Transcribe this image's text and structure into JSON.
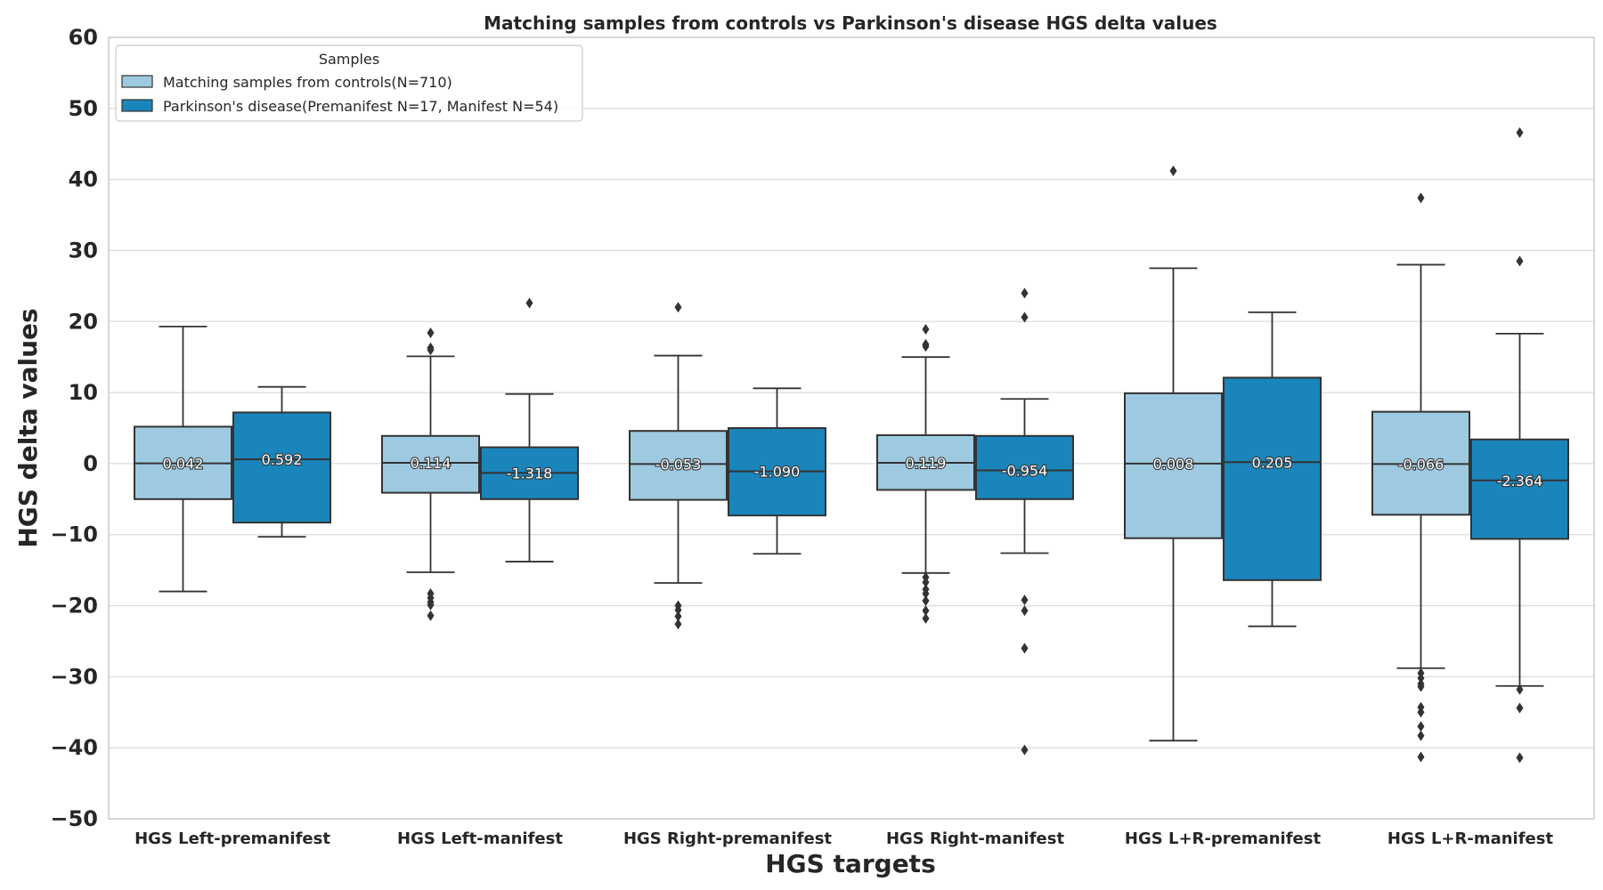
{
  "chart_data": {
    "type": "box",
    "title": "Matching samples from controls vs Parkinson's disease HGS delta values",
    "xlabel": "HGS targets",
    "ylabel": "HGS delta values",
    "ylim": [
      -50,
      60
    ],
    "yticks": [
      60,
      50,
      40,
      30,
      20,
      10,
      0,
      -10,
      -20,
      -30,
      -40,
      -50
    ],
    "ytick_labels": [
      "60",
      "50",
      "40",
      "30",
      "20",
      "10",
      "0",
      "−10",
      "−20",
      "−30",
      "−40",
      "−50"
    ],
    "grid": true,
    "categories": [
      "HGS Left-premanifest",
      "HGS Left-manifest",
      "HGS Right-premanifest",
      "HGS Right-manifest",
      "HGS L+R-premanifest",
      "HGS L+R-manifest"
    ],
    "legend": {
      "title": "Samples",
      "placement": "upper-left"
    },
    "series": [
      {
        "name": "Matching samples from controls(N=710)",
        "color": "#9ecae1",
        "boxes": [
          {
            "whislo": -18,
            "q1": -5,
            "med": 0.042,
            "q3": 5.2,
            "whishi": 19.3,
            "fliers": [],
            "label": "0.042"
          },
          {
            "whislo": -15.3,
            "q1": -4.1,
            "med": 0.114,
            "q3": 3.9,
            "whishi": 15.1,
            "fliers": [
              18.4,
              16.3,
              16.0,
              -18.3,
              -18.9,
              -19.5,
              -19.9,
              -21.4
            ],
            "label": "0.114"
          },
          {
            "whislo": -16.8,
            "q1": -5.1,
            "med": -0.053,
            "q3": 4.6,
            "whishi": 15.2,
            "fliers": [
              22.0,
              -20.0,
              -20.6,
              -21.5,
              -22.6
            ],
            "label": "-0.053"
          },
          {
            "whislo": -15.4,
            "q1": -3.7,
            "med": 0.119,
            "q3": 4.0,
            "whishi": 15.0,
            "fliers": [
              18.9,
              16.8,
              16.5,
              -16.0,
              -16.7,
              -17.7,
              -18.3,
              -19.3,
              -20.7,
              -21.8
            ],
            "label": "0.119"
          },
          {
            "whislo": -39.0,
            "q1": -10.5,
            "med": 0.008,
            "q3": 9.9,
            "whishi": 27.5,
            "fliers": [
              41.2
            ],
            "label": "0.008"
          },
          {
            "whislo": -28.8,
            "q1": -7.2,
            "med": -0.066,
            "q3": 7.3,
            "whishi": 28.0,
            "fliers": [
              37.4,
              -29.5,
              -30.2,
              -31.0,
              -31.4,
              -34.3,
              -35.0,
              -37.0,
              -38.3,
              -41.3
            ],
            "label": "-0.066"
          }
        ]
      },
      {
        "name": "Parkinson's disease(Premanifest N=17, Manifest N=54)",
        "color": "#1a85bb",
        "boxes": [
          {
            "whislo": -10.3,
            "q1": -8.3,
            "med": 0.592,
            "q3": 7.2,
            "whishi": 10.8,
            "fliers": [],
            "label": "0.592"
          },
          {
            "whislo": -13.8,
            "q1": -5.0,
            "med": -1.318,
            "q3": 2.3,
            "whishi": 9.8,
            "fliers": [
              22.6
            ],
            "label": "-1.318"
          },
          {
            "whislo": -12.7,
            "q1": -7.3,
            "med": -1.09,
            "q3": 5.0,
            "whishi": 10.6,
            "fliers": [],
            "label": "-1.090"
          },
          {
            "whislo": -12.6,
            "q1": -5.0,
            "med": -0.954,
            "q3": 3.9,
            "whishi": 9.1,
            "fliers": [
              24.0,
              20.6,
              -19.2,
              -20.7,
              -26.0,
              -40.3
            ],
            "label": "-0.954"
          },
          {
            "whislo": -22.9,
            "q1": -16.4,
            "med": 0.205,
            "q3": 12.1,
            "whishi": 21.3,
            "fliers": [],
            "label": "0.205"
          },
          {
            "whislo": -31.3,
            "q1": -10.6,
            "med": -2.364,
            "q3": 3.4,
            "whishi": 18.3,
            "fliers": [
              46.6,
              28.5,
              -31.8,
              -34.4,
              -41.4
            ],
            "label": "-2.364"
          }
        ]
      }
    ]
  }
}
